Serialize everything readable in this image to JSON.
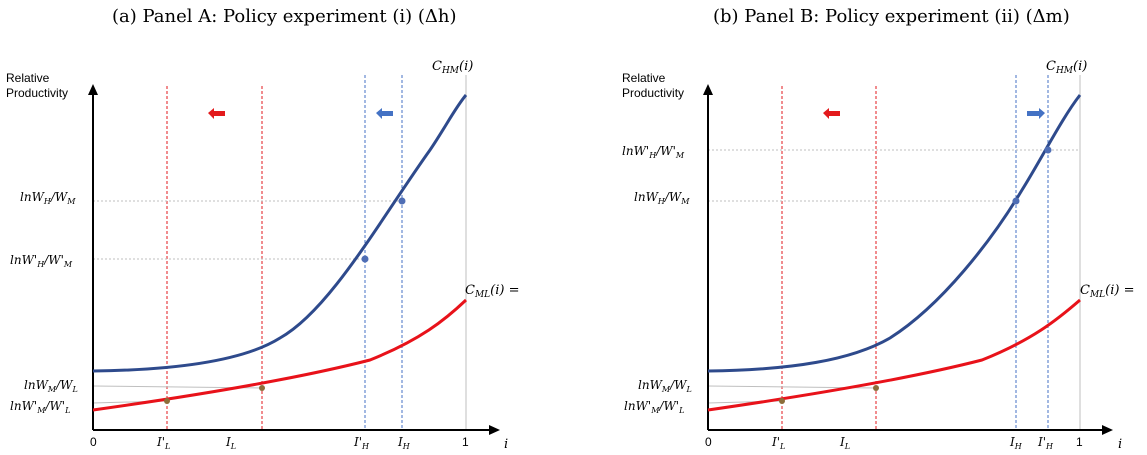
{
  "panels": [
    {
      "title": "(a) Panel A: Policy experiment (i) (Δh)",
      "y_axis_label": [
        "Relative",
        "Productivity"
      ],
      "x_axis_label": "i",
      "curve_labels": {
        "upper": "C_HM(i)",
        "lower": "C_ML(i) ="
      },
      "y_ticks": [
        "lnW_H/W_M",
        "lnW'_H/W'_M",
        "lnW_M/W_L",
        "lnW'_M/W'_L"
      ],
      "x_ticks": [
        "0",
        "I'_L",
        "I_L",
        "I'_H",
        "I_H",
        "1"
      ],
      "arrows": [
        {
          "color": "#e31a1c",
          "direction": "left"
        },
        {
          "color": "#4472c4",
          "direction": "left"
        }
      ]
    },
    {
      "title": "(b) Panel B: Policy experiment (ii) (Δm)",
      "y_axis_label": [
        "Relative",
        "Productivity"
      ],
      "x_axis_label": "i",
      "curve_labels": {
        "upper": "C_HM(i)",
        "lower": "C_ML(i) ="
      },
      "y_ticks": [
        "lnW'_H/W'_M",
        "lnW_H/W_M",
        "lnW_M/W_L",
        "lnW'_M/W'_L"
      ],
      "x_ticks": [
        "0",
        "I'_L",
        "I_L",
        "I_H",
        "I'_H",
        "1"
      ],
      "arrows": [
        {
          "color": "#e31a1c",
          "direction": "left"
        },
        {
          "color": "#4472c4",
          "direction": "right"
        }
      ]
    }
  ],
  "colors": {
    "upper_curve": "#2e4a8c",
    "lower_curve": "#e8121a",
    "red_guide": "#e31a1c",
    "blue_guide": "#4472c4",
    "point": "#4f6eb5",
    "lower_point": "#8c6e3a"
  }
}
